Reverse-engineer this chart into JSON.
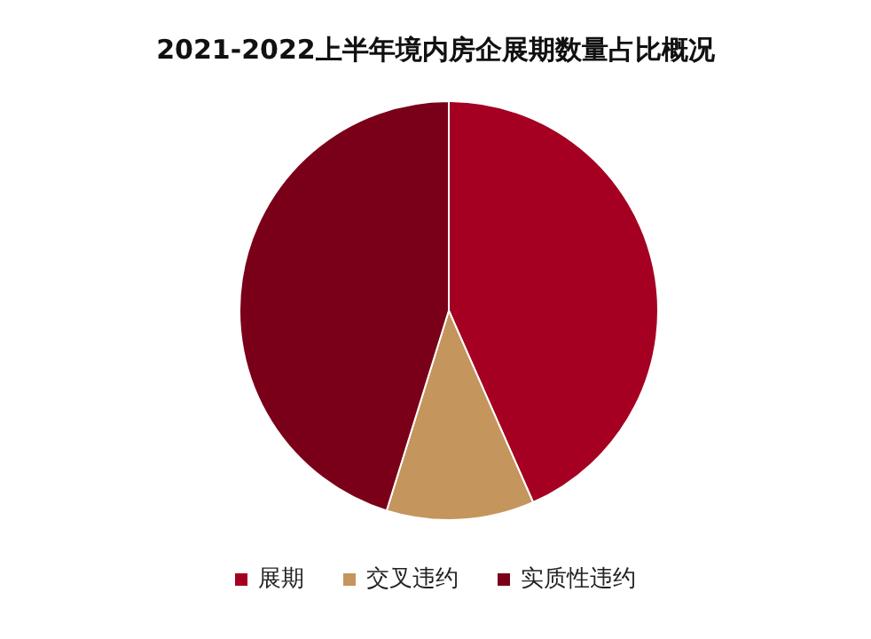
{
  "chart_data": {
    "type": "pie",
    "title": "2021-2022上半年境内房企展期数量占比概况",
    "categories": [
      "展期",
      "交叉违约",
      "实质性违约"
    ],
    "values": [
      43.4,
      11.4,
      45.2
    ],
    "colors": [
      "#a50021",
      "#c4955c",
      "#7a0019"
    ],
    "legend": "bottom"
  }
}
